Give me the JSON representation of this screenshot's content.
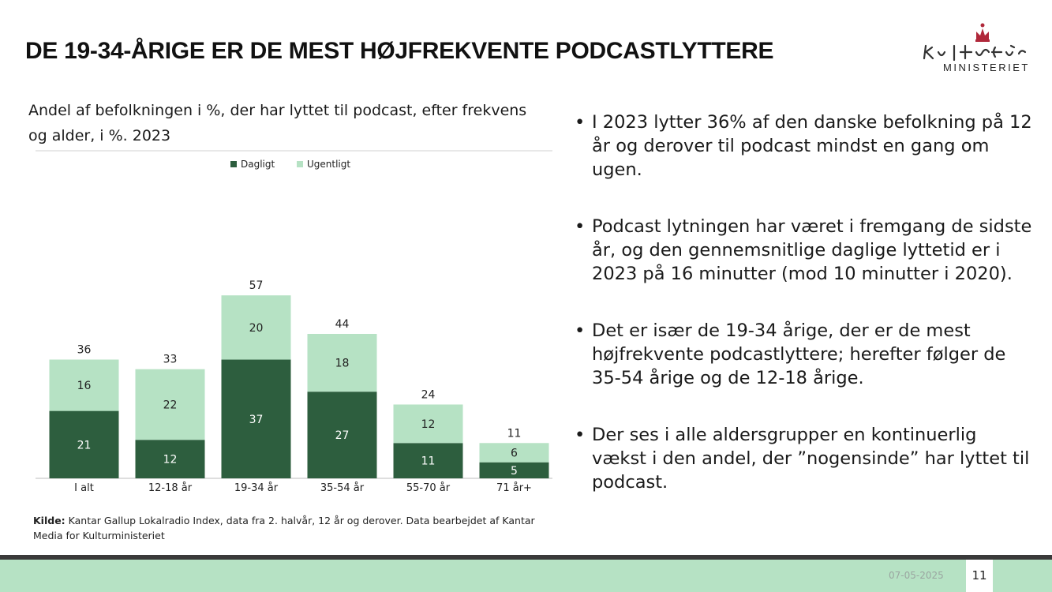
{
  "slide": {
    "title": "DE 19-34-ÅRIGE ER DE MEST HØJFREKVENTE PODCASTLYTTERE",
    "logo_word": "MINISTERIET",
    "subtitle": "Andel af befolkningen i %, der har lyttet til podcast, efter frekvens og alder, i %. 2023",
    "source_label": "Kilde:",
    "source_text": "Kantar Gallup Lokalradio Index, data fra 2. halvår, 12 år og derover. Data bearbejdet af Kantar Media for Kulturministeriet",
    "bullets": [
      "I 2023 lytter 36% af den danske befolkning på 12 år og derover til podcast mindst en gang om ugen.",
      "Podcast lytningen har været i fremgang de sidste år, og den gennemsnitlige daglige lyttetid er i 2023 på 16 minutter (mod 10 minutter i 2020).",
      "Det er især de 19-34 årige, der er de mest højfrekvente podcastlyttere; herefter følger de 35-54 årige og de 12-18 årige.",
      "Der ses i alle aldersgrupper en kontinuerlig vækst i den andel, der ”nogensinde” har lyttet til podcast."
    ],
    "bullet_char": "•",
    "footer_date": "07-05-2025",
    "page_number": "11"
  },
  "colors": {
    "daily": "#2d5e3e",
    "weekly": "#b6e2c4",
    "footer": "#b6e2c4",
    "footer_border": "#3a3a3a",
    "logo_crown": "#b0283a"
  },
  "chart_data": {
    "type": "bar",
    "stacked": true,
    "categories": [
      "I alt",
      "12-18 år",
      "19-34 år",
      "35-54 år",
      "55-70 år",
      "71 år+"
    ],
    "series": [
      {
        "name": "Dagligt",
        "values": [
          21,
          12,
          37,
          27,
          11,
          5
        ],
        "color": "#2d5e3e",
        "label_color": "#ffffff"
      },
      {
        "name": "Ugentligt",
        "values": [
          16,
          22,
          20,
          18,
          12,
          6
        ],
        "color": "#b6e2c4",
        "label_color": "#222222"
      }
    ],
    "totals": [
      36,
      33,
      57,
      44,
      24,
      11
    ],
    "ylim": [
      0,
      60
    ],
    "legend_position": "top-center",
    "grid": false,
    "title": "",
    "xlabel": "",
    "ylabel": ""
  }
}
